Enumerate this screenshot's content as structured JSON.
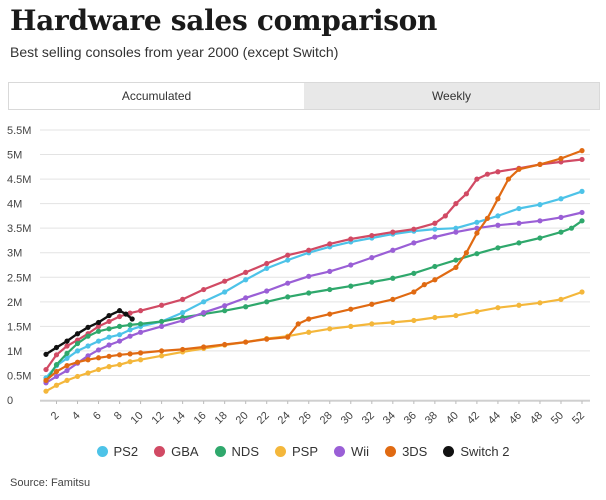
{
  "title": "Hardware sales comparison",
  "subtitle": "Best selling consoles from year 2000 (except Switch)",
  "tabs": [
    {
      "label": "Accumulated",
      "active": true
    },
    {
      "label": "Weekly",
      "active": false
    }
  ],
  "source": "Source: Famitsu",
  "chart_data": {
    "type": "line",
    "title": "Hardware sales comparison",
    "xlabel": "",
    "ylabel": "",
    "xlim": [
      1,
      52
    ],
    "ylim": [
      0,
      5.5
    ],
    "x_ticks": [
      2,
      4,
      6,
      8,
      10,
      12,
      14,
      16,
      18,
      20,
      22,
      24,
      26,
      28,
      30,
      32,
      34,
      36,
      38,
      40,
      42,
      44,
      46,
      48,
      50,
      52
    ],
    "y_ticks": [
      {
        "value": 0,
        "label": "0"
      },
      {
        "value": 0.5,
        "label": "0.5M"
      },
      {
        "value": 1,
        "label": "1M"
      },
      {
        "value": 1.5,
        "label": "1.5M"
      },
      {
        "value": 2,
        "label": "2M"
      },
      {
        "value": 2.5,
        "label": "2.5M"
      },
      {
        "value": 3,
        "label": "3M"
      },
      {
        "value": 3.5,
        "label": "3.5M"
      },
      {
        "value": 4,
        "label": "4M"
      },
      {
        "value": 4.5,
        "label": "4.5M"
      },
      {
        "value": 5,
        "label": "5M"
      },
      {
        "value": 5.5,
        "label": "5.5M"
      }
    ],
    "grid": true,
    "legend_position": "bottom",
    "series": [
      {
        "name": "PS2",
        "color": "#4dc3e8",
        "points": [
          [
            1,
            0.45
          ],
          [
            2,
            0.7
          ],
          [
            3,
            0.85
          ],
          [
            4,
            1.0
          ],
          [
            5,
            1.1
          ],
          [
            6,
            1.2
          ],
          [
            7,
            1.28
          ],
          [
            8,
            1.33
          ],
          [
            9,
            1.43
          ],
          [
            10,
            1.5
          ],
          [
            12,
            1.6
          ],
          [
            14,
            1.78
          ],
          [
            16,
            2.0
          ],
          [
            18,
            2.2
          ],
          [
            20,
            2.45
          ],
          [
            22,
            2.68
          ],
          [
            24,
            2.85
          ],
          [
            26,
            3.0
          ],
          [
            28,
            3.12
          ],
          [
            30,
            3.22
          ],
          [
            32,
            3.3
          ],
          [
            34,
            3.38
          ],
          [
            36,
            3.44
          ],
          [
            38,
            3.48
          ],
          [
            40,
            3.5
          ],
          [
            42,
            3.62
          ],
          [
            44,
            3.75
          ],
          [
            46,
            3.9
          ],
          [
            48,
            3.98
          ],
          [
            50,
            4.1
          ],
          [
            52,
            4.25
          ]
        ]
      },
      {
        "name": "GBA",
        "color": "#d14a64",
        "points": [
          [
            1,
            0.62
          ],
          [
            2,
            0.92
          ],
          [
            3,
            1.1
          ],
          [
            4,
            1.22
          ],
          [
            5,
            1.35
          ],
          [
            6,
            1.5
          ],
          [
            7,
            1.6
          ],
          [
            8,
            1.7
          ],
          [
            9,
            1.77
          ],
          [
            10,
            1.82
          ],
          [
            12,
            1.93
          ],
          [
            14,
            2.05
          ],
          [
            16,
            2.25
          ],
          [
            18,
            2.42
          ],
          [
            20,
            2.6
          ],
          [
            22,
            2.78
          ],
          [
            24,
            2.95
          ],
          [
            26,
            3.05
          ],
          [
            28,
            3.18
          ],
          [
            30,
            3.28
          ],
          [
            32,
            3.35
          ],
          [
            34,
            3.42
          ],
          [
            36,
            3.48
          ],
          [
            38,
            3.6
          ],
          [
            39,
            3.75
          ],
          [
            40,
            4.0
          ],
          [
            41,
            4.2
          ],
          [
            42,
            4.5
          ],
          [
            43,
            4.6
          ],
          [
            44,
            4.65
          ],
          [
            46,
            4.72
          ],
          [
            48,
            4.8
          ],
          [
            50,
            4.85
          ],
          [
            52,
            4.9
          ]
        ]
      },
      {
        "name": "NDS",
        "color": "#2fa86c",
        "points": [
          [
            1,
            0.38
          ],
          [
            2,
            0.72
          ],
          [
            3,
            0.95
          ],
          [
            4,
            1.15
          ],
          [
            5,
            1.3
          ],
          [
            6,
            1.4
          ],
          [
            7,
            1.45
          ],
          [
            8,
            1.5
          ],
          [
            9,
            1.53
          ],
          [
            10,
            1.55
          ],
          [
            12,
            1.6
          ],
          [
            14,
            1.68
          ],
          [
            16,
            1.75
          ],
          [
            18,
            1.82
          ],
          [
            20,
            1.9
          ],
          [
            22,
            2.0
          ],
          [
            24,
            2.1
          ],
          [
            26,
            2.18
          ],
          [
            28,
            2.25
          ],
          [
            30,
            2.32
          ],
          [
            32,
            2.4
          ],
          [
            34,
            2.48
          ],
          [
            36,
            2.58
          ],
          [
            38,
            2.72
          ],
          [
            40,
            2.85
          ],
          [
            42,
            2.98
          ],
          [
            44,
            3.1
          ],
          [
            46,
            3.2
          ],
          [
            48,
            3.3
          ],
          [
            50,
            3.42
          ],
          [
            51,
            3.5
          ],
          [
            52,
            3.65
          ]
        ]
      },
      {
        "name": "PSP",
        "color": "#f4b73b",
        "points": [
          [
            1,
            0.18
          ],
          [
            2,
            0.3
          ],
          [
            3,
            0.4
          ],
          [
            4,
            0.48
          ],
          [
            5,
            0.55
          ],
          [
            6,
            0.62
          ],
          [
            7,
            0.68
          ],
          [
            8,
            0.72
          ],
          [
            9,
            0.78
          ],
          [
            10,
            0.82
          ],
          [
            12,
            0.9
          ],
          [
            14,
            0.98
          ],
          [
            16,
            1.05
          ],
          [
            18,
            1.12
          ],
          [
            20,
            1.18
          ],
          [
            22,
            1.25
          ],
          [
            24,
            1.3
          ],
          [
            26,
            1.38
          ],
          [
            28,
            1.45
          ],
          [
            30,
            1.5
          ],
          [
            32,
            1.55
          ],
          [
            34,
            1.58
          ],
          [
            36,
            1.62
          ],
          [
            38,
            1.68
          ],
          [
            40,
            1.72
          ],
          [
            42,
            1.8
          ],
          [
            44,
            1.88
          ],
          [
            46,
            1.93
          ],
          [
            48,
            1.98
          ],
          [
            50,
            2.05
          ],
          [
            52,
            2.2
          ]
        ]
      },
      {
        "name": "Wii",
        "color": "#9a5fd6",
        "points": [
          [
            1,
            0.35
          ],
          [
            2,
            0.48
          ],
          [
            3,
            0.6
          ],
          [
            4,
            0.75
          ],
          [
            5,
            0.9
          ],
          [
            6,
            1.02
          ],
          [
            7,
            1.12
          ],
          [
            8,
            1.2
          ],
          [
            9,
            1.3
          ],
          [
            10,
            1.38
          ],
          [
            12,
            1.5
          ],
          [
            14,
            1.62
          ],
          [
            16,
            1.78
          ],
          [
            18,
            1.92
          ],
          [
            20,
            2.08
          ],
          [
            22,
            2.22
          ],
          [
            24,
            2.38
          ],
          [
            26,
            2.52
          ],
          [
            28,
            2.62
          ],
          [
            30,
            2.75
          ],
          [
            32,
            2.9
          ],
          [
            34,
            3.05
          ],
          [
            36,
            3.2
          ],
          [
            38,
            3.32
          ],
          [
            40,
            3.42
          ],
          [
            42,
            3.5
          ],
          [
            44,
            3.56
          ],
          [
            46,
            3.6
          ],
          [
            48,
            3.65
          ],
          [
            50,
            3.72
          ],
          [
            52,
            3.82
          ]
        ]
      },
      {
        "name": "3DS",
        "color": "#e06a12",
        "points": [
          [
            1,
            0.4
          ],
          [
            2,
            0.58
          ],
          [
            3,
            0.7
          ],
          [
            4,
            0.77
          ],
          [
            5,
            0.82
          ],
          [
            6,
            0.86
          ],
          [
            7,
            0.89
          ],
          [
            8,
            0.92
          ],
          [
            9,
            0.94
          ],
          [
            10,
            0.96
          ],
          [
            12,
            1.0
          ],
          [
            14,
            1.03
          ],
          [
            16,
            1.08
          ],
          [
            18,
            1.13
          ],
          [
            20,
            1.18
          ],
          [
            22,
            1.24
          ],
          [
            24,
            1.28
          ],
          [
            25,
            1.55
          ],
          [
            26,
            1.65
          ],
          [
            28,
            1.75
          ],
          [
            30,
            1.85
          ],
          [
            32,
            1.95
          ],
          [
            34,
            2.05
          ],
          [
            36,
            2.2
          ],
          [
            37,
            2.35
          ],
          [
            38,
            2.45
          ],
          [
            40,
            2.7
          ],
          [
            41,
            3.0
          ],
          [
            42,
            3.4
          ],
          [
            43,
            3.7
          ],
          [
            44,
            4.1
          ],
          [
            45,
            4.5
          ],
          [
            46,
            4.7
          ],
          [
            48,
            4.8
          ],
          [
            50,
            4.92
          ],
          [
            52,
            5.08
          ]
        ]
      },
      {
        "name": "Switch 2",
        "color": "#111111",
        "points": [
          [
            1,
            0.93
          ],
          [
            2,
            1.07
          ],
          [
            3,
            1.2
          ],
          [
            4,
            1.35
          ],
          [
            5,
            1.48
          ],
          [
            6,
            1.58
          ],
          [
            7,
            1.72
          ],
          [
            8,
            1.82
          ],
          [
            8.6,
            1.75
          ],
          [
            9.2,
            1.65
          ]
        ]
      }
    ]
  }
}
